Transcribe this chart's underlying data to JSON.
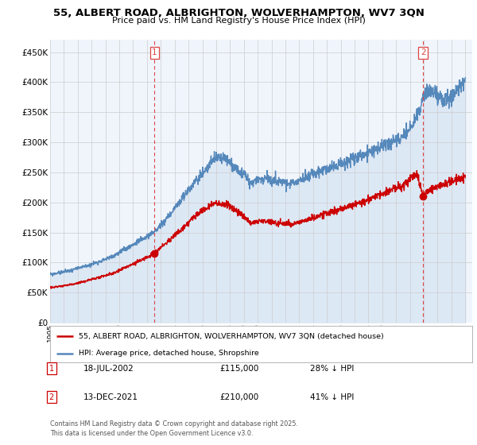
{
  "title": "55, ALBERT ROAD, ALBRIGHTON, WOLVERHAMPTON, WV7 3QN",
  "subtitle": "Price paid vs. HM Land Registry's House Price Index (HPI)",
  "legend_label_red": "55, ALBERT ROAD, ALBRIGHTON, WOLVERHAMPTON, WV7 3QN (detached house)",
  "legend_label_blue": "HPI: Average price, detached house, Shropshire",
  "footnote": "Contains HM Land Registry data © Crown copyright and database right 2025.\nThis data is licensed under the Open Government Licence v3.0.",
  "annotation1_date": "18-JUL-2002",
  "annotation1_price": "£115,000",
  "annotation1_hpi": "28% ↓ HPI",
  "annotation2_date": "13-DEC-2021",
  "annotation2_price": "£210,000",
  "annotation2_hpi": "41% ↓ HPI",
  "xmin": 1995,
  "xmax": 2025.5,
  "ymin": 0,
  "ymax": 470000,
  "yticks": [
    0,
    50000,
    100000,
    150000,
    200000,
    250000,
    300000,
    350000,
    400000,
    450000
  ],
  "ytick_labels": [
    "£0",
    "£50K",
    "£100K",
    "£150K",
    "£200K",
    "£250K",
    "£300K",
    "£350K",
    "£400K",
    "£450K"
  ],
  "red_color": "#cc0000",
  "blue_color": "#5588bb",
  "blue_fill_color": "#dde8f5",
  "annotation_line_color": "#dd4444",
  "grid_color": "#cccccc",
  "background_color": "#ffffff",
  "chart_bg_color": "#f0f5fc",
  "purchase1_x": 2002.55,
  "purchase1_y": 115000,
  "purchase2_x": 2021.96,
  "purchase2_y": 210000
}
